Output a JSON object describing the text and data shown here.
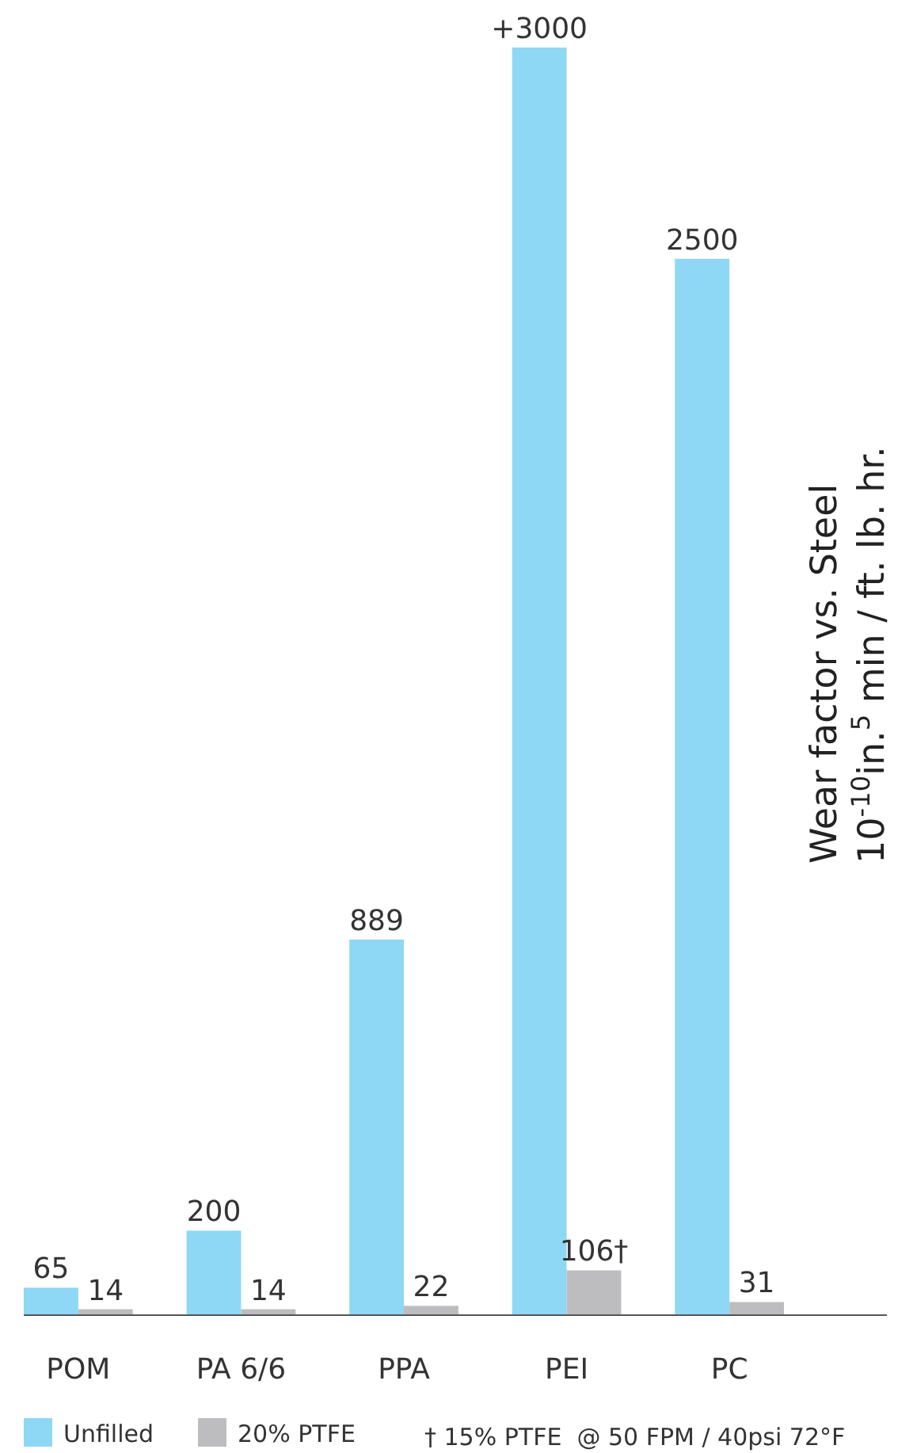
{
  "chart_data": {
    "type": "bar",
    "relative": false,
    "categories": [
      "POM",
      "PA 6/6",
      "PPA",
      "PEI",
      "PC"
    ],
    "series": [
      {
        "name": "Unfilled",
        "color": "#8fd8f5",
        "values": [
          65,
          200,
          889,
          3000,
          2500
        ],
        "value_labels": [
          "65",
          "200",
          "889",
          "+3000",
          "2500"
        ]
      },
      {
        "name": "20% PTFE",
        "color": "#bdbdbf",
        "values": [
          14,
          14,
          22,
          106,
          31
        ],
        "value_labels": [
          "14",
          "14",
          "22",
          "106†",
          "31"
        ]
      }
    ],
    "ylabel": "Wear factor vs. Steel\n10$^{-10}$in.$^{5}$ min / ft. lb. hr.",
    "annotations": [
      "† 15% PTFE  @ 50 FPM / 40psi 72°F"
    ],
    "legend": "bottom"
  }
}
